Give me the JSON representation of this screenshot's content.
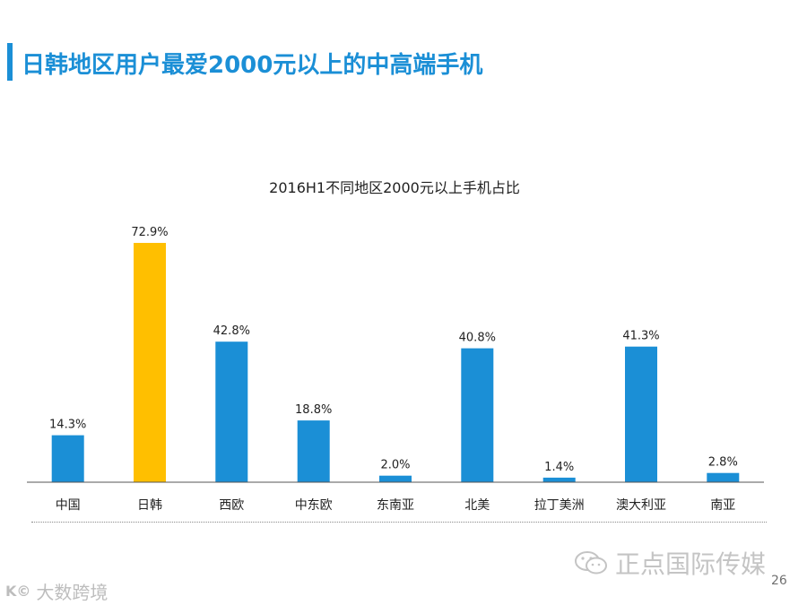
{
  "slide": {
    "title": "日韩地区用户最爱2000元以上的中高端手机",
    "page_number": "26",
    "watermark_text": "正点国际传媒",
    "bottom_logo_mark": "K©",
    "bottom_logo_text": "大数跨境"
  },
  "colors": {
    "accent": "#1b8fd6",
    "highlight": "#ffbf00",
    "axis": "#555555",
    "text": "#222222"
  },
  "chart_data": {
    "type": "bar",
    "title": "2016H1不同地区2000元以上手机占比",
    "categories": [
      "中国",
      "日韩",
      "西欧",
      "中东欧",
      "东南亚",
      "北美",
      "拉丁美洲",
      "澳大利亚",
      "南亚"
    ],
    "values": [
      14.3,
      72.9,
      42.8,
      18.8,
      2.0,
      40.8,
      1.4,
      41.3,
      2.8
    ],
    "data_labels": [
      "14.3%",
      "72.9%",
      "42.8%",
      "18.8%",
      "2.0%",
      "40.8%",
      "1.4%",
      "41.3%",
      "2.8%"
    ],
    "highlight_index": 1,
    "unit": "%",
    "ylim": [
      0,
      80
    ],
    "grid": false,
    "legend": "none",
    "xlabel": "",
    "ylabel": ""
  }
}
